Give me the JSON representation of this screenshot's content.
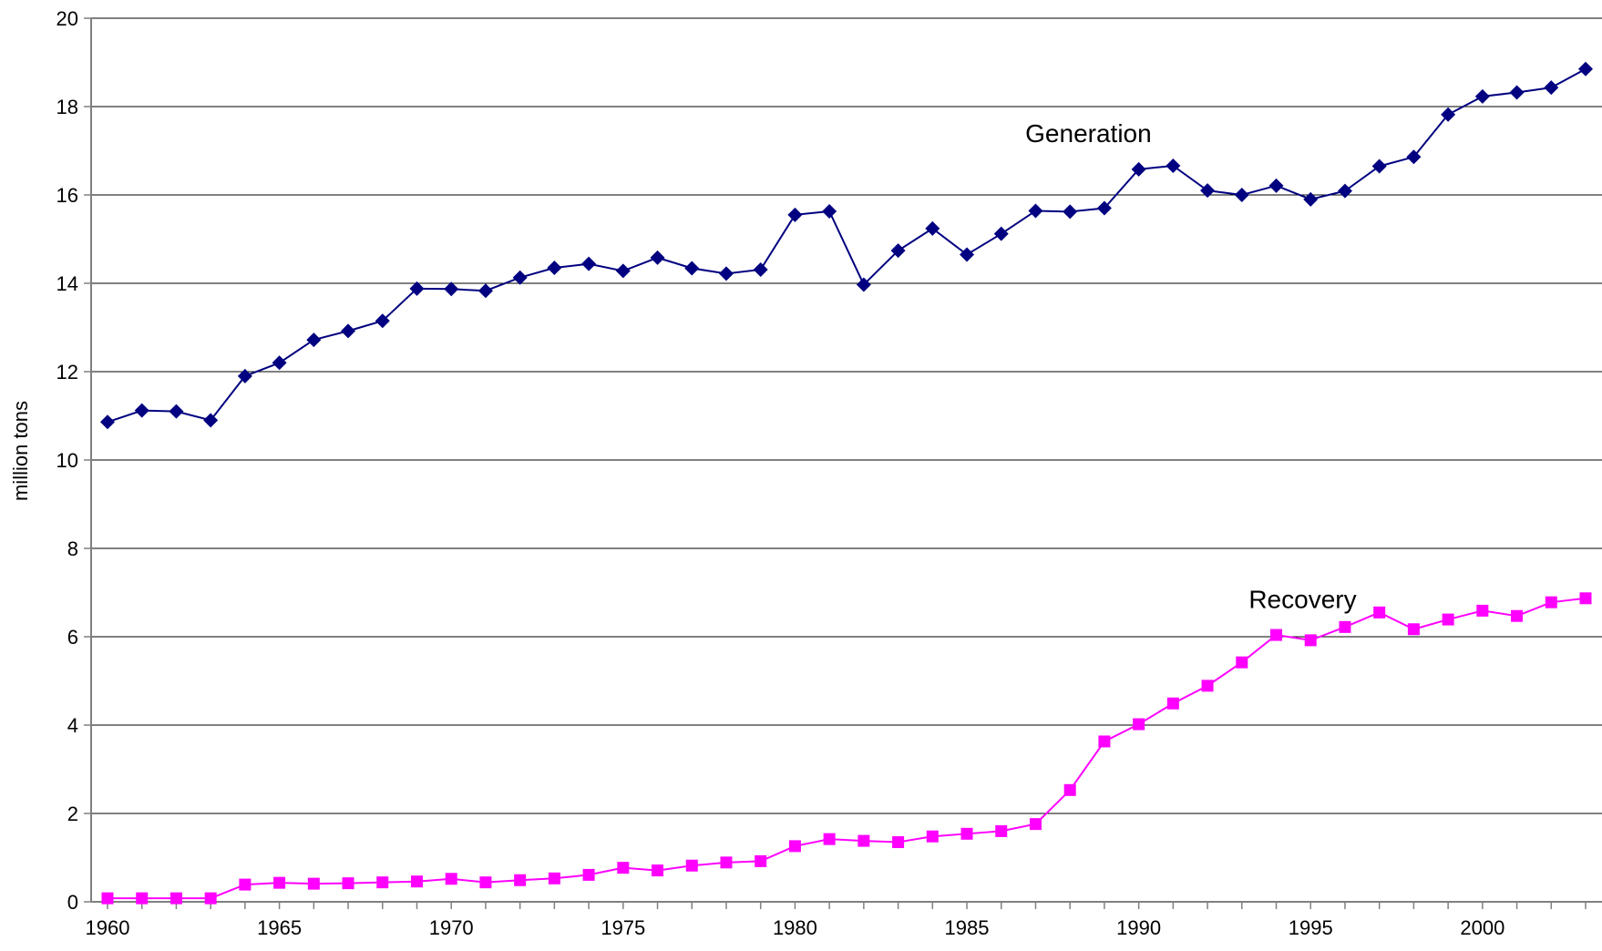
{
  "chart_data": {
    "type": "line",
    "title": "",
    "xlabel": "",
    "ylabel": "million tons",
    "xlim": [
      1960,
      2003
    ],
    "ylim": [
      0,
      20
    ],
    "x_ticks": [
      1960,
      1965,
      1970,
      1975,
      1980,
      1985,
      1990,
      1995,
      2000
    ],
    "y_ticks": [
      0,
      2,
      4,
      6,
      8,
      10,
      12,
      14,
      16,
      18,
      20
    ],
    "grid": "horizontal",
    "legend": "none",
    "x": [
      1960,
      1961,
      1962,
      1963,
      1964,
      1965,
      1966,
      1967,
      1968,
      1969,
      1970,
      1971,
      1972,
      1973,
      1974,
      1975,
      1976,
      1977,
      1978,
      1979,
      1980,
      1981,
      1982,
      1983,
      1984,
      1985,
      1986,
      1987,
      1988,
      1989,
      1990,
      1991,
      1992,
      1993,
      1994,
      1995,
      1996,
      1997,
      1998,
      1999,
      2000,
      2001,
      2002,
      2003
    ],
    "series": [
      {
        "name": "Generation",
        "color": "#000080",
        "marker": "diamond",
        "values": [
          10.86,
          11.12,
          11.1,
          10.9,
          11.9,
          12.2,
          12.72,
          12.92,
          13.15,
          13.88,
          13.87,
          13.83,
          14.13,
          14.35,
          14.44,
          14.28,
          14.58,
          14.34,
          14.22,
          14.31,
          15.55,
          15.63,
          13.97,
          14.74,
          15.24,
          14.65,
          15.12,
          15.64,
          15.62,
          15.7,
          16.58,
          16.66,
          16.1,
          16.0,
          16.21,
          15.9,
          16.09,
          16.65,
          16.86,
          17.82,
          18.23,
          18.32,
          18.43,
          18.85
        ]
      },
      {
        "name": "Recovery",
        "color": "#ff00ff",
        "marker": "square",
        "values": [
          0.08,
          0.08,
          0.08,
          0.08,
          0.39,
          0.43,
          0.41,
          0.42,
          0.44,
          0.46,
          0.52,
          0.44,
          0.49,
          0.53,
          0.61,
          0.77,
          0.71,
          0.82,
          0.89,
          0.92,
          1.26,
          1.42,
          1.38,
          1.35,
          1.48,
          1.54,
          1.6,
          1.76,
          2.53,
          3.63,
          4.02,
          4.49,
          4.89,
          5.42,
          6.04,
          5.92,
          6.22,
          6.55,
          6.17,
          6.39,
          6.59,
          6.47,
          6.78,
          6.87
        ]
      }
    ]
  }
}
